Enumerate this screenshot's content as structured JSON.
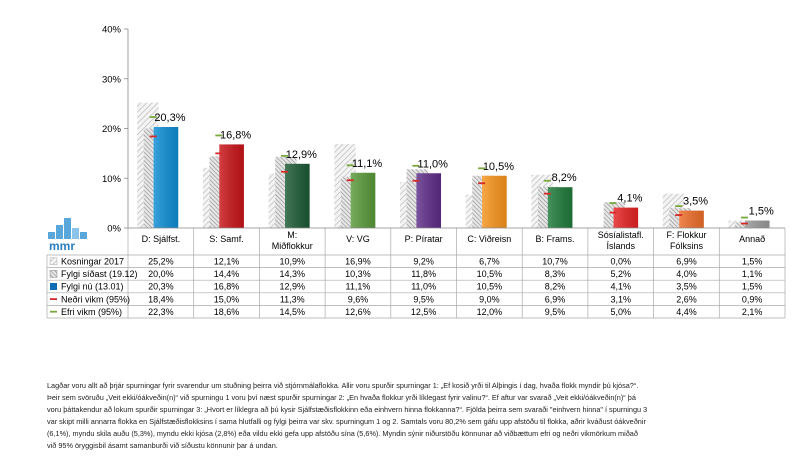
{
  "chart_data": {
    "type": "bar",
    "title": "",
    "xlabel": "",
    "ylabel": "",
    "ylim": [
      0,
      40
    ],
    "yticks": [
      "0%",
      "10%",
      "20%",
      "30%",
      "40%"
    ],
    "categories": [
      "D: Sjálfst.",
      "S: Samf.",
      "M: Miðflokkur",
      "V: VG",
      "P: Píratar",
      "C: Viðreisn",
      "B: Frams.",
      "Sósíalistafl. Íslands",
      "F: Flokkur Fólksins",
      "Annað"
    ],
    "category_lines": [
      [
        "D: Sjálfst."
      ],
      [
        "S: Samf."
      ],
      [
        "M:",
        "Miðflokkur"
      ],
      [
        "V: VG"
      ],
      [
        "P: Píratar"
      ],
      [
        "C: Viðreisn"
      ],
      [
        "B: Frams."
      ],
      [
        "Sósíalistafl.",
        "Íslands"
      ],
      [
        "F: Flokkur",
        "Fólksins"
      ],
      [
        "Annað"
      ]
    ],
    "series": [
      {
        "name": "Kosningar 2017",
        "pattern": "hatch-light",
        "values": [
          25.2,
          12.1,
          10.9,
          16.9,
          9.2,
          6.7,
          10.7,
          0.0,
          6.9,
          1.5
        ],
        "labels": [
          "25,2%",
          "12,1%",
          "10,9%",
          "16,9%",
          "9,2%",
          "6,7%",
          "10,7%",
          "0,0%",
          "6,9%",
          "1,5%"
        ]
      },
      {
        "name": "Fylgi síðast (19.12)",
        "pattern": "hatch-dark",
        "values": [
          20.0,
          14.4,
          14.3,
          10.3,
          11.8,
          10.5,
          8.3,
          5.2,
          4.0,
          1.1
        ],
        "labels": [
          "20,0%",
          "14,4%",
          "14,3%",
          "10,3%",
          "11,8%",
          "10,5%",
          "8,3%",
          "5,2%",
          "4,0%",
          "1,1%"
        ]
      },
      {
        "name": "Fylgi nú (13.01)",
        "pattern": "solid",
        "values": [
          20.3,
          16.8,
          12.9,
          11.1,
          11.0,
          10.5,
          8.2,
          4.1,
          3.5,
          1.5
        ],
        "labels": [
          "20,3%",
          "16,8%",
          "12,9%",
          "11,1%",
          "11,0%",
          "10,5%",
          "8,2%",
          "4,1%",
          "3,5%",
          "1,5%"
        ]
      },
      {
        "name": "Neðri vikm (95%)",
        "marker": "dash-red",
        "values": [
          18.4,
          15.0,
          11.3,
          9.6,
          9.5,
          9.0,
          6.9,
          3.1,
          2.6,
          0.9
        ],
        "labels": [
          "18,4%",
          "15,0%",
          "11,3%",
          "9,6%",
          "9,5%",
          "9,0%",
          "6,9%",
          "3,1%",
          "2,6%",
          "0,9%"
        ]
      },
      {
        "name": "Efri vikm (95%)",
        "marker": "dash-green",
        "values": [
          22.3,
          18.6,
          14.5,
          12.6,
          12.5,
          12.0,
          9.5,
          5.0,
          4.4,
          2.1
        ],
        "labels": [
          "22,3%",
          "18,6%",
          "14,5%",
          "12,6%",
          "12,5%",
          "12,0%",
          "9,5%",
          "5,0%",
          "4,4%",
          "2,1%"
        ]
      }
    ],
    "bar_colors": [
      "#0d8ed4",
      "#c81418",
      "#1c5a34",
      "#5a9a3a",
      "#5e2d88",
      "#f7941d",
      "#1f7a3a",
      "#e52324",
      "#ed6e2a",
      "#9a9a9a"
    ],
    "hatch_color": "#b0b0b0",
    "lower_color": "#d42a2a",
    "upper_color": "#79a83c",
    "current_series_swatch": "#0d6db5"
  },
  "caption": {
    "lines": [
      "Lagðar voru allt að þrjár spurningar fyrir svarendur um stuðning þeirra við stjórnmálaflokka. Allir voru spurðir spurningar 1: „Ef kosið yrði til Alþingis í dag, hvaða flokk myndir þú kjósa?“.",
      "Þeir sem svöruðu „Veit ekki/óákveðin(n)“ við spurningu 1 voru því næst spurðir spurningar 2: „En hvaða flokkur yrði líklegast fyrir valinu?“. Ef aftur var svarað „Veit ekki/óákveðin(n)“ þá",
      "voru þáttakendur að lokum spurðir spurningar 3: „Hvort er líklegra að þú kysir Sjálfstæðisflokkinn eða einhvern hinna flokkanna?“. Fjölda þeirra sem svaraði \"einhvern hinna\" í spurningu 3",
      "var skipt milli annarra flokka en Sjálfstæðisflokksins í sama hlutfalli og fylgi þeirra var skv. spurningum 1 og 2. Samtals voru 80,2% sem gáfu upp afstöðu til flokka, aðrir kváðust óákveðnir",
      "(6,1%), myndu skila auðu (5,3%), myndu ekki kjósa (2,8%) eða vildu ekki gefa upp afstöðu sína (5,6%). Myndin sýnir niðurstöðu könnunar að viðbættum efri og neðri vikmörkum miðað",
      "við 95% öryggisbil ásamt samanburði við síðustu könnunir þar á undan."
    ]
  },
  "logo": {
    "text": "mmr"
  }
}
